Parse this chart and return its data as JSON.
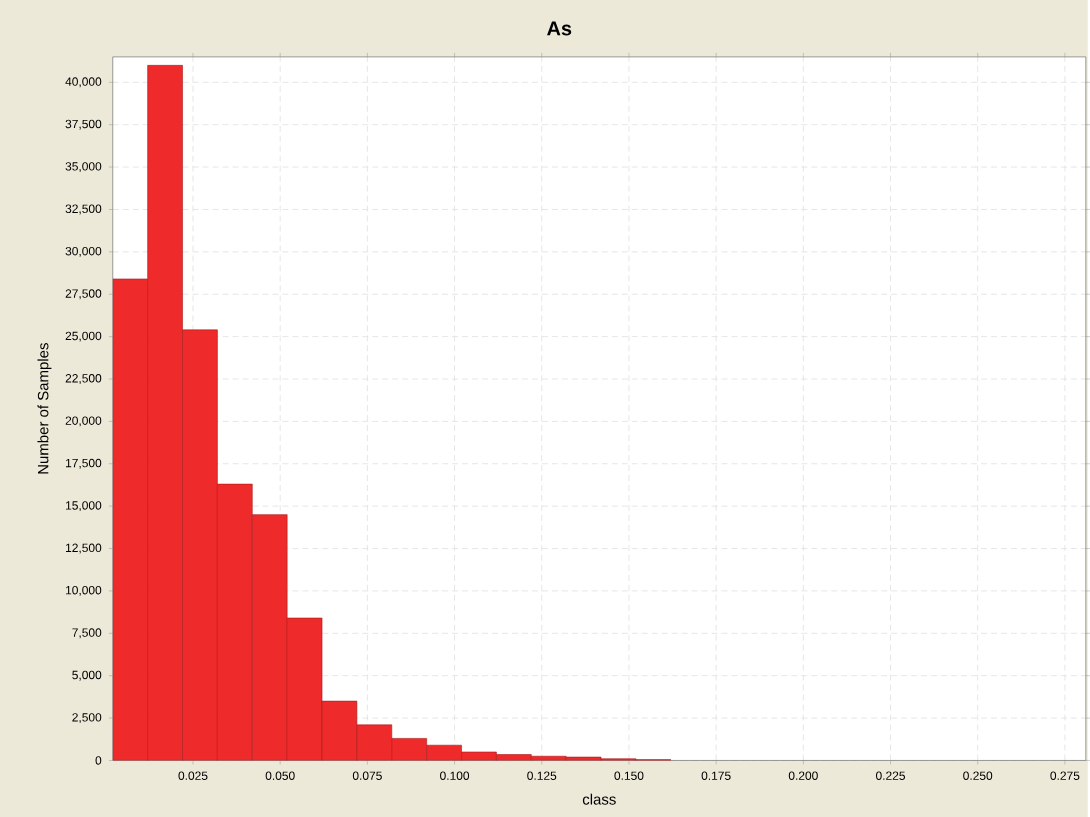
{
  "chart_data": {
    "type": "histogram",
    "title": "As",
    "xlabel": "class",
    "ylabel": "Number of Samples",
    "bins": [
      0.002,
      0.012,
      0.022,
      0.032,
      0.042,
      0.052,
      0.062,
      0.072,
      0.082,
      0.092,
      0.102,
      0.112,
      0.122,
      0.132,
      0.142,
      0.152,
      0.162
    ],
    "values": [
      28400,
      41000,
      25400,
      16300,
      14500,
      8400,
      3500,
      2100,
      1300,
      900,
      500,
      350,
      250,
      200,
      100,
      50
    ],
    "color": "#ee2a2a",
    "xlim": [
      0.002,
      0.281
    ],
    "xticks": [
      0.025,
      {
        "value": 0.05,
        "label": "0.050"
      },
      0.075,
      {
        "value": 0.1,
        "label": "0.100"
      },
      0.125,
      {
        "value": 0.15,
        "label": "0.150"
      },
      0.175,
      {
        "value": 0.2,
        "label": "0.200"
      },
      0.225,
      {
        "value": 0.25,
        "label": "0.250"
      },
      0.275
    ],
    "ylim": [
      0,
      41500
    ],
    "yticks": [
      {
        "value": 0,
        "label": "0"
      },
      {
        "value": 2500,
        "label": "2,500"
      },
      {
        "value": 5000,
        "label": "5,000"
      },
      {
        "value": 7500,
        "label": "7,500"
      },
      {
        "value": 10000,
        "label": "10,000"
      },
      {
        "value": 12500,
        "label": "12,500"
      },
      {
        "value": 15000,
        "label": "15,000"
      },
      {
        "value": 17500,
        "label": "17,500"
      },
      {
        "value": 20000,
        "label": "20,000"
      },
      {
        "value": 22500,
        "label": "22,500"
      },
      {
        "value": 25000,
        "label": "25,000"
      },
      {
        "value": 27500,
        "label": "27,500"
      },
      {
        "value": 30000,
        "label": "30,000"
      },
      {
        "value": 32500,
        "label": "32,500"
      },
      {
        "value": 35000,
        "label": "35,000"
      },
      {
        "value": 37500,
        "label": "37,500"
      },
      {
        "value": 40000,
        "label": "40,000"
      }
    ],
    "grid": true
  }
}
